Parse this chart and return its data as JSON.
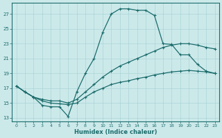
{
  "xlabel": "Humidex (Indice chaleur)",
  "bg_color": "#cce9ea",
  "grid_color": "#aad4d6",
  "line_color": "#1a6b6b",
  "xlim": [
    -0.5,
    23.5
  ],
  "ylim": [
    12.5,
    28.5
  ],
  "yticks": [
    13,
    15,
    17,
    19,
    21,
    23,
    25,
    27
  ],
  "xticks": [
    0,
    1,
    2,
    3,
    4,
    5,
    6,
    7,
    8,
    9,
    10,
    11,
    12,
    13,
    14,
    15,
    16,
    17,
    18,
    19,
    20,
    21,
    22,
    23
  ],
  "line1_x": [
    0,
    1,
    2,
    3,
    4,
    5,
    6,
    7,
    8,
    9,
    10,
    11,
    12,
    13,
    14,
    15,
    16,
    17,
    18,
    19,
    20,
    21,
    22,
    23
  ],
  "line1_y": [
    17.3,
    16.5,
    15.8,
    14.7,
    14.5,
    14.5,
    13.2,
    16.5,
    19.0,
    21.0,
    24.5,
    27.0,
    27.7,
    27.7,
    27.5,
    27.5,
    26.8,
    23.0,
    22.9,
    21.5,
    21.5,
    20.2,
    19.3,
    19.0
  ],
  "line2_x": [
    0,
    1,
    2,
    3,
    4,
    5,
    6,
    7,
    8,
    9,
    10,
    11,
    12,
    13,
    14,
    15,
    16,
    17,
    18,
    19,
    20,
    21,
    22,
    23
  ],
  "line2_y": [
    17.3,
    16.5,
    15.8,
    15.5,
    15.3,
    15.3,
    15.0,
    15.5,
    16.5,
    17.5,
    18.5,
    19.3,
    20.0,
    20.5,
    21.0,
    21.5,
    22.0,
    22.5,
    22.8,
    23.0,
    23.0,
    22.8,
    22.5,
    22.3
  ],
  "line3_x": [
    0,
    1,
    2,
    3,
    4,
    5,
    6,
    7,
    8,
    9,
    10,
    11,
    12,
    13,
    14,
    15,
    16,
    17,
    18,
    19,
    20,
    21,
    22,
    23
  ],
  "line3_y": [
    17.3,
    16.5,
    15.8,
    15.3,
    15.0,
    14.9,
    14.8,
    15.0,
    15.8,
    16.5,
    17.0,
    17.5,
    17.8,
    18.0,
    18.3,
    18.5,
    18.8,
    19.0,
    19.2,
    19.3,
    19.4,
    19.3,
    19.2,
    19.0
  ]
}
